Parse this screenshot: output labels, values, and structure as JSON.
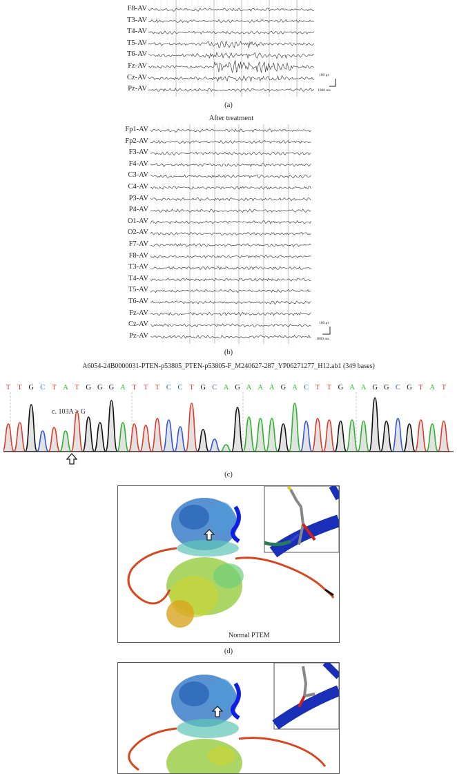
{
  "eeg_a": {
    "channels": [
      "F8-AV",
      "T3-AV",
      "T4-AV",
      "T5-AV",
      "T6-AV",
      "Fz-AV",
      "Cz-AV",
      "Pz-AV"
    ],
    "scale_amp": "100 μv",
    "scale_time": "1000 ms",
    "panel": "(a)"
  },
  "eeg_b": {
    "title": "After treatment",
    "channels": [
      "Fp1-AV",
      "Fp2-AV",
      "F3-AV",
      "F4-AV",
      "C3-AV",
      "C4-AV",
      "P3-AV",
      "P4-AV",
      "O1-AV",
      "O2-AV",
      "F7-AV",
      "F8-AV",
      "T3-AV",
      "T4-AV",
      "T5-AV",
      "T6-AV",
      "Fz-AV",
      "Cz-AV",
      "Pz-AV"
    ],
    "scale_amp": "100 μv",
    "scale_time": "1000 ms",
    "panel": "(b)"
  },
  "seq": {
    "title": "A6054-24B0000031-PTEN-p53805_PTEN-p53805-F_M240627-287_YP06271277_H12.ab1 (349 bases)",
    "bases": [
      "T",
      "T",
      "G",
      "C",
      "T",
      "A",
      "T",
      "G",
      "G",
      "G",
      "A",
      "T",
      "T",
      "T",
      "C",
      "C",
      "T",
      "G",
      "C",
      "A",
      "G",
      "A",
      "A",
      "A",
      "G",
      "A",
      "C",
      "T",
      "T",
      "G",
      "A",
      "A",
      "G",
      "G",
      "C",
      "G",
      "T",
      "A",
      "T"
    ],
    "mutation_label": "c. 103A > G",
    "panel": "(c)",
    "colors": {
      "A": "#2bb52b",
      "T": "#e03a2a",
      "G": "#111111",
      "C": "#3355dd"
    }
  },
  "protein_d": {
    "label": "Normal PTEM",
    "panel": "(d)"
  }
}
